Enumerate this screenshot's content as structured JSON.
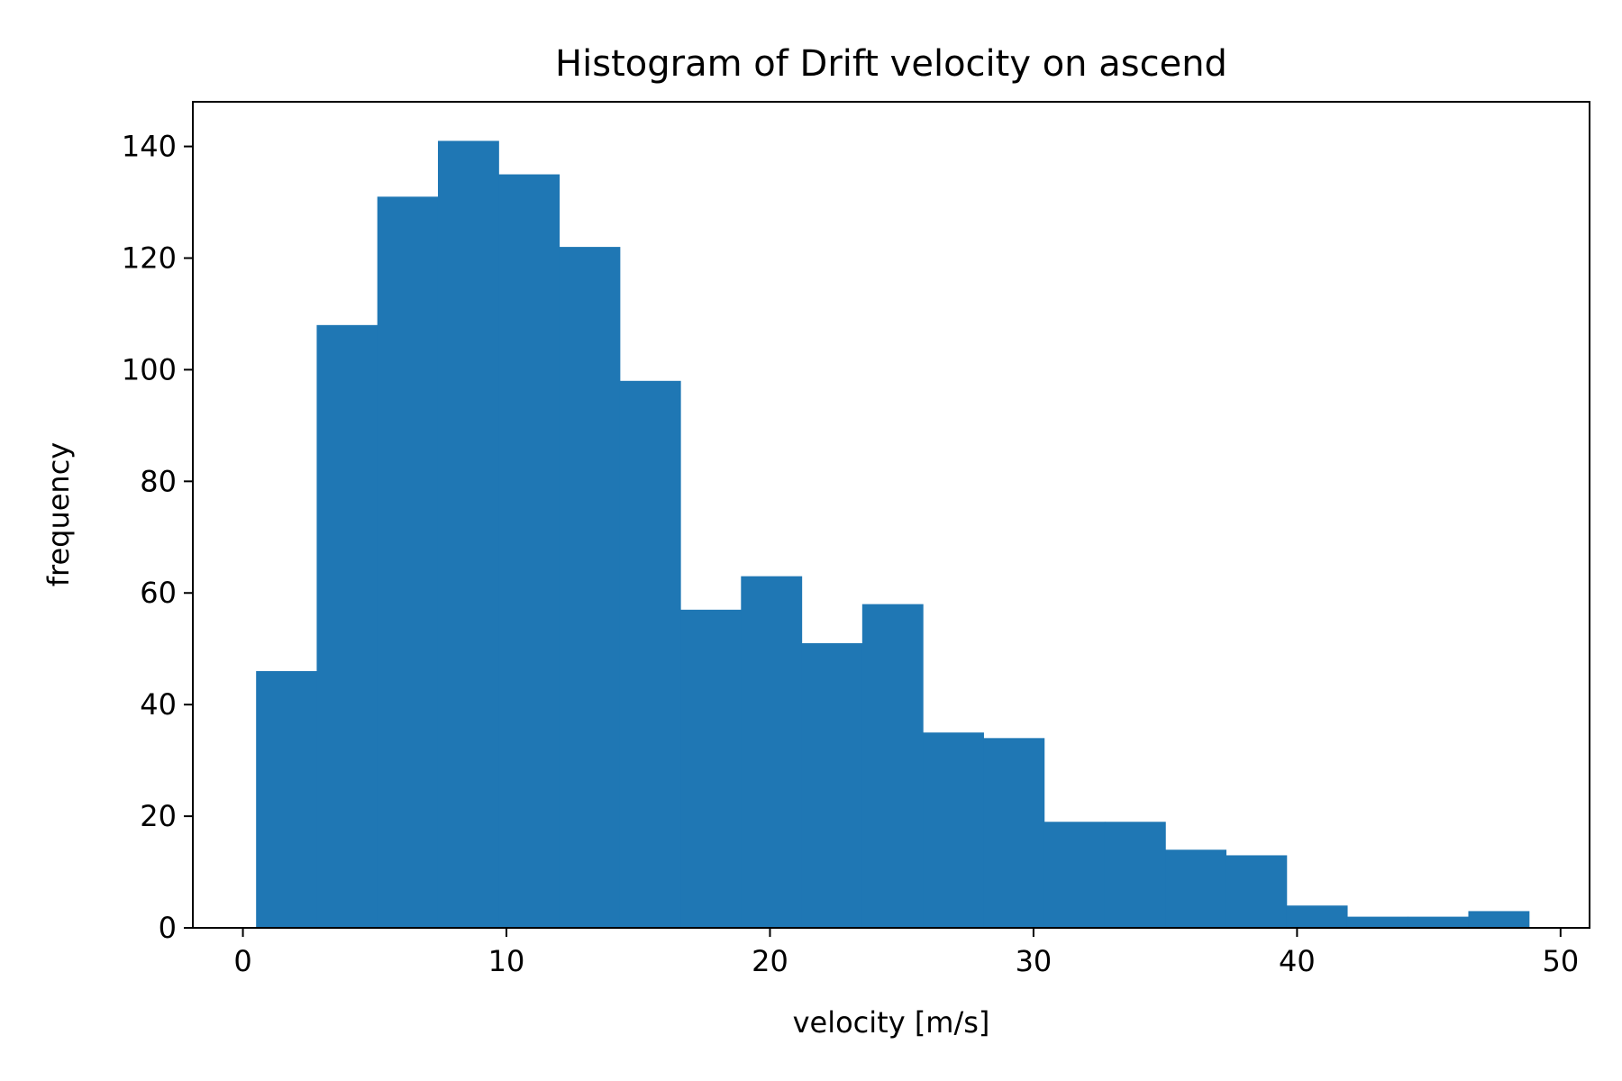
{
  "chart_data": {
    "type": "bar",
    "title": "Histogram of Drift velocity on ascend",
    "xlabel": "velocity [m/s]",
    "ylabel": "frequency",
    "xlim": [
      -1.9,
      51.1
    ],
    "ylim": [
      0,
      148
    ],
    "xticks": [
      0,
      10,
      20,
      30,
      40,
      50
    ],
    "yticks": [
      0,
      20,
      40,
      60,
      80,
      100,
      120,
      140
    ],
    "grid": false,
    "legend": "none",
    "bar_color": "#1f77b4",
    "bin_edges": [
      0.5,
      2.8,
      5.1,
      7.4,
      9.7,
      12.0,
      14.3,
      16.6,
      18.9,
      21.2,
      23.5,
      25.8,
      28.1,
      30.4,
      32.7,
      35.0,
      37.3,
      39.6,
      41.9,
      44.2,
      46.5,
      48.8
    ],
    "values": [
      46,
      108,
      131,
      141,
      135,
      122,
      98,
      57,
      63,
      51,
      58,
      35,
      34,
      19,
      19,
      14,
      13,
      4,
      2,
      2,
      3
    ]
  }
}
